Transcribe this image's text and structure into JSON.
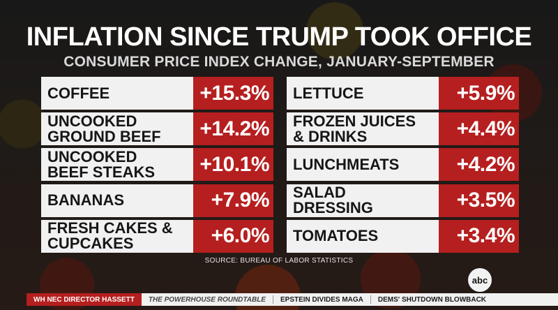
{
  "title": "INFLATION SINCE TRUMP TOOK OFFICE",
  "subtitle": "CONSUMER PRICE INDEX CHANGE, JANUARY-SEPTEMBER",
  "source": "SOURCE: BUREAU OF LABOR STATISTICS",
  "logo": "abc",
  "colors": {
    "value_box": "#b51f1f",
    "label_box": "#f1f1f1"
  },
  "ticker": [
    "WH NEC DIRECTOR HASSETT",
    "THE POWERHOUSE ROUNDTABLE",
    "EPSTEIN DIVIDES MAGA",
    "DEMS' SHUTDOWN BLOWBACK"
  ],
  "chart_data": {
    "type": "table",
    "columns": [
      [
        {
          "lines": [
            "COFFEE"
          ],
          "value": 15.3,
          "label": "+15.3%"
        },
        {
          "lines": [
            "UNCOOKED",
            "GROUND BEEF"
          ],
          "value": 14.2,
          "label": "+14.2%"
        },
        {
          "lines": [
            "UNCOOKED",
            "BEEF STEAKS"
          ],
          "value": 10.1,
          "label": "+10.1%"
        },
        {
          "lines": [
            "BANANAS"
          ],
          "value": 7.9,
          "label": "+7.9%"
        },
        {
          "lines": [
            "FRESH CAKES &",
            "CUPCAKES"
          ],
          "value": 6.0,
          "label": "+6.0%"
        }
      ],
      [
        {
          "lines": [
            "LETTUCE"
          ],
          "value": 5.9,
          "label": "+5.9%"
        },
        {
          "lines": [
            "FROZEN JUICES",
            "& DRINKS"
          ],
          "value": 4.4,
          "label": "+4.4%"
        },
        {
          "lines": [
            "LUNCHMEATS"
          ],
          "value": 4.2,
          "label": "+4.2%"
        },
        {
          "lines": [
            "SALAD",
            "DRESSING"
          ],
          "value": 3.5,
          "label": "+3.5%"
        },
        {
          "lines": [
            "TOMATOES"
          ],
          "value": 3.4,
          "label": "+3.4%"
        }
      ]
    ]
  }
}
